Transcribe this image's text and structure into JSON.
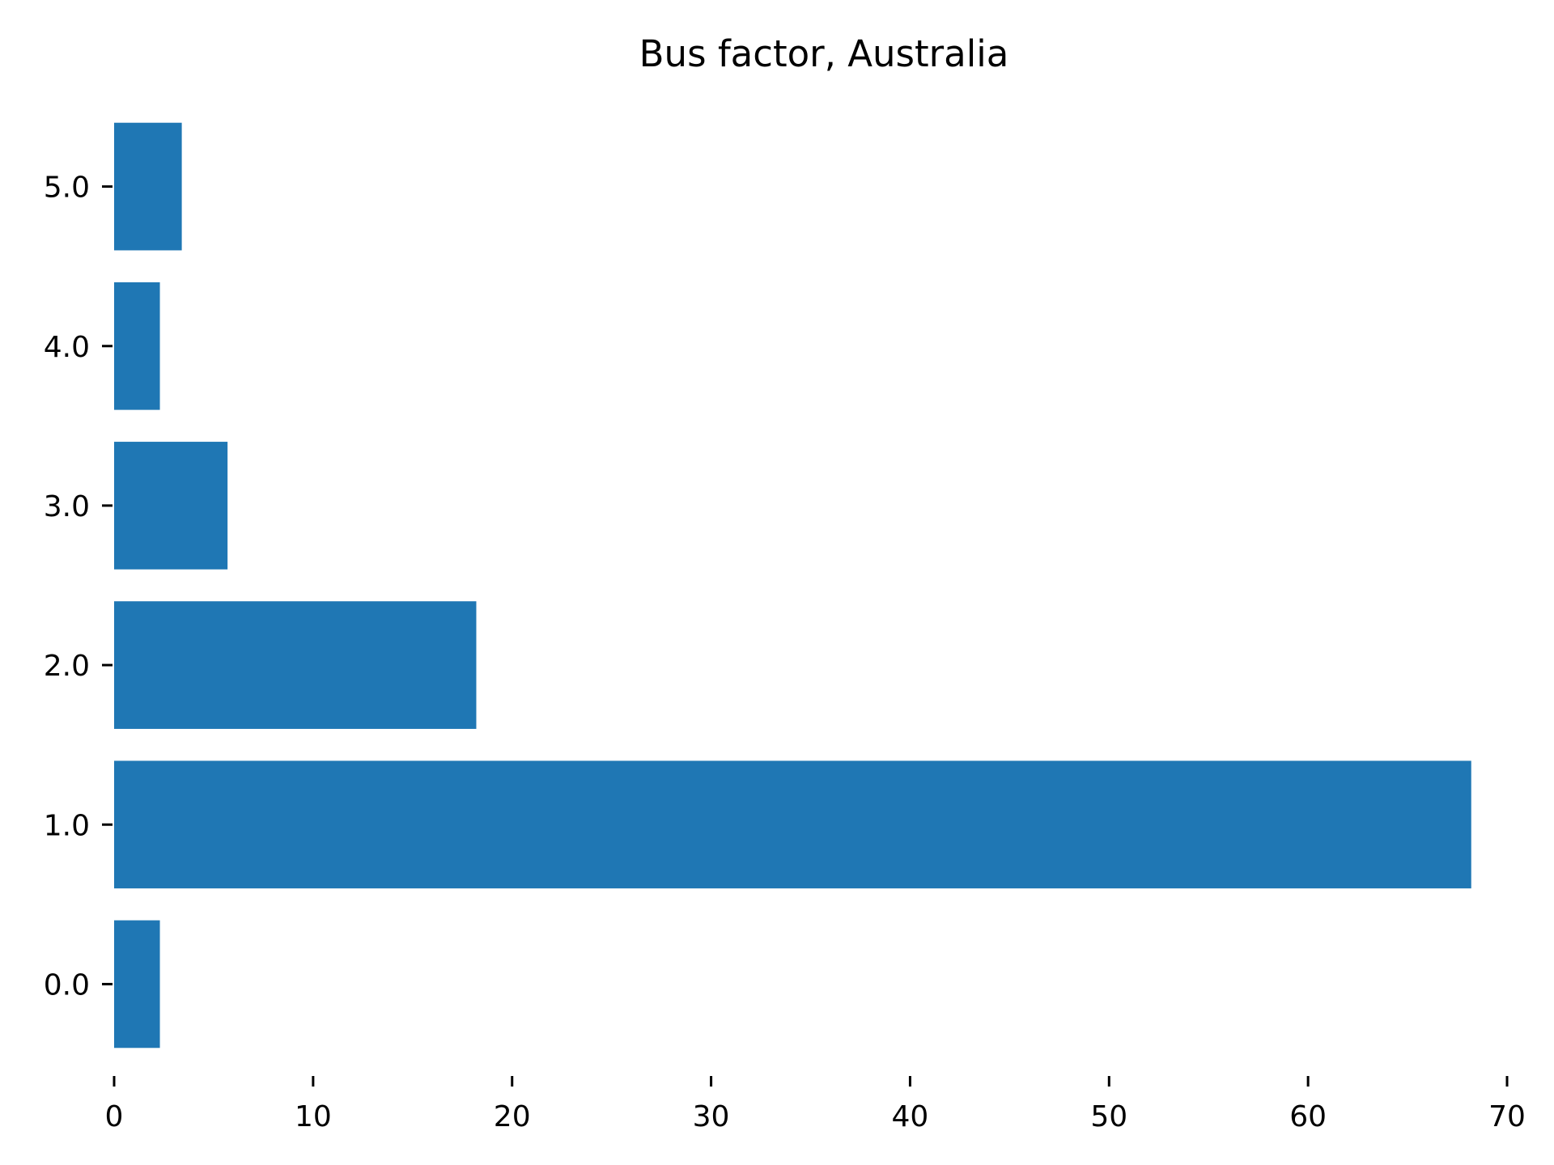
{
  "chart_data": {
    "type": "bar",
    "orientation": "horizontal",
    "title": "Bus factor, Australia",
    "xlabel": "",
    "ylabel": "",
    "categories": [
      "0.0",
      "1.0",
      "2.0",
      "3.0",
      "4.0",
      "5.0"
    ],
    "category_positions": [
      0,
      1,
      2,
      3,
      4,
      5
    ],
    "values": [
      2.3,
      68.2,
      18.2,
      5.7,
      2.3,
      3.4
    ],
    "xlim": [
      0,
      70
    ],
    "ylim": [
      -0.5,
      5.5
    ],
    "x_ticks": [
      0,
      10,
      20,
      30,
      40,
      50,
      60,
      70
    ],
    "x_tick_labels": [
      "0",
      "10",
      "20",
      "30",
      "40",
      "50",
      "60",
      "70"
    ],
    "y_ticks": [
      0,
      1,
      2,
      3,
      4,
      5
    ],
    "y_tick_labels": [
      "0.0",
      "1.0",
      "2.0",
      "3.0",
      "4.0",
      "5.0"
    ],
    "grid": false,
    "legend": "none",
    "spines_visible": false,
    "bar_color": "#1f77b4"
  }
}
